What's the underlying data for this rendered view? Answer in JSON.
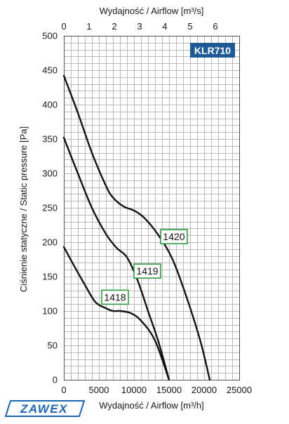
{
  "brand": {
    "logo_text": "ZAWEX",
    "color": "#1e64b4"
  },
  "chart_data": {
    "type": "line",
    "model_badge": "KLR710",
    "x_top_label": "Wydajność / Airflow [m³/s]",
    "x_bottom_label": "Wydajność / Airflow [m³/h]",
    "ylabel": "Ciśnienie statyczne / Static pressure [Pa]",
    "xlim": [
      0,
      25000
    ],
    "ylim": [
      0,
      500
    ],
    "x_ticks": [
      0,
      5000,
      10000,
      15000,
      20000,
      25000
    ],
    "y_ticks": [
      0,
      50,
      100,
      150,
      200,
      250,
      300,
      350,
      400,
      450,
      500
    ],
    "x_top_ticks": [
      0,
      1,
      2,
      3,
      4,
      5,
      6
    ],
    "grid": true,
    "series": [
      {
        "name": "1418",
        "x": [
          0,
          1500,
          3000,
          4500,
          6000,
          7000,
          8000,
          9500,
          11000,
          13000,
          15000
        ],
        "y": [
          193,
          165,
          138,
          113,
          104,
          100,
          100,
          97,
          86,
          57,
          0
        ]
      },
      {
        "name": "1419",
        "x": [
          0,
          2000,
          4000,
          6000,
          7500,
          9000,
          10500,
          12000,
          13500,
          15000
        ],
        "y": [
          352,
          300,
          250,
          212,
          192,
          178,
          145,
          100,
          55,
          0
        ]
      },
      {
        "name": "1420",
        "x": [
          0,
          2000,
          4000,
          6000,
          7000,
          8500,
          10000,
          11500,
          13500,
          15500,
          17500,
          19500,
          20800
        ],
        "y": [
          442,
          388,
          330,
          282,
          265,
          252,
          246,
          235,
          210,
          175,
          120,
          55,
          0
        ]
      }
    ],
    "series_label_color": "#2e9a3e",
    "badge_color": "#1e5a96"
  }
}
